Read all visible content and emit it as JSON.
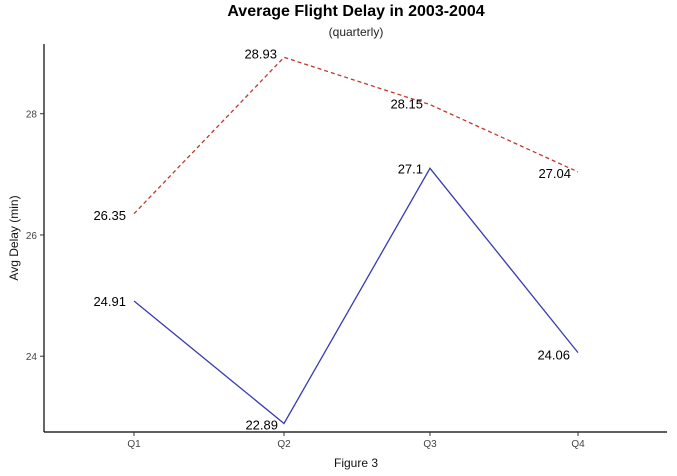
{
  "chart_data": {
    "type": "line",
    "title": "Average Flight Delay in 2003-2004",
    "subtitle": "(quarterly)",
    "xlabel": "Figure 3",
    "ylabel": "Avg Delay (min)",
    "categories": [
      "Q1",
      "Q2",
      "Q3",
      "Q4"
    ],
    "y_ticks": [
      24,
      26,
      28
    ],
    "ylim": [
      22.75,
      29.15
    ],
    "grid": false,
    "legend": "none",
    "series": [
      {
        "values": [
          24.91,
          22.89,
          27.1,
          24.06
        ],
        "labels": [
          "24.91",
          "22.89",
          "27.1",
          "24.06"
        ],
        "color": "#3a3ab5",
        "dash": "solid"
      },
      {
        "values": [
          26.35,
          28.93,
          28.15,
          27.04
        ],
        "labels": [
          "26.35",
          "28.93",
          "28.15",
          "27.04"
        ],
        "color": "#c0392b",
        "dash": "dashed"
      }
    ]
  }
}
